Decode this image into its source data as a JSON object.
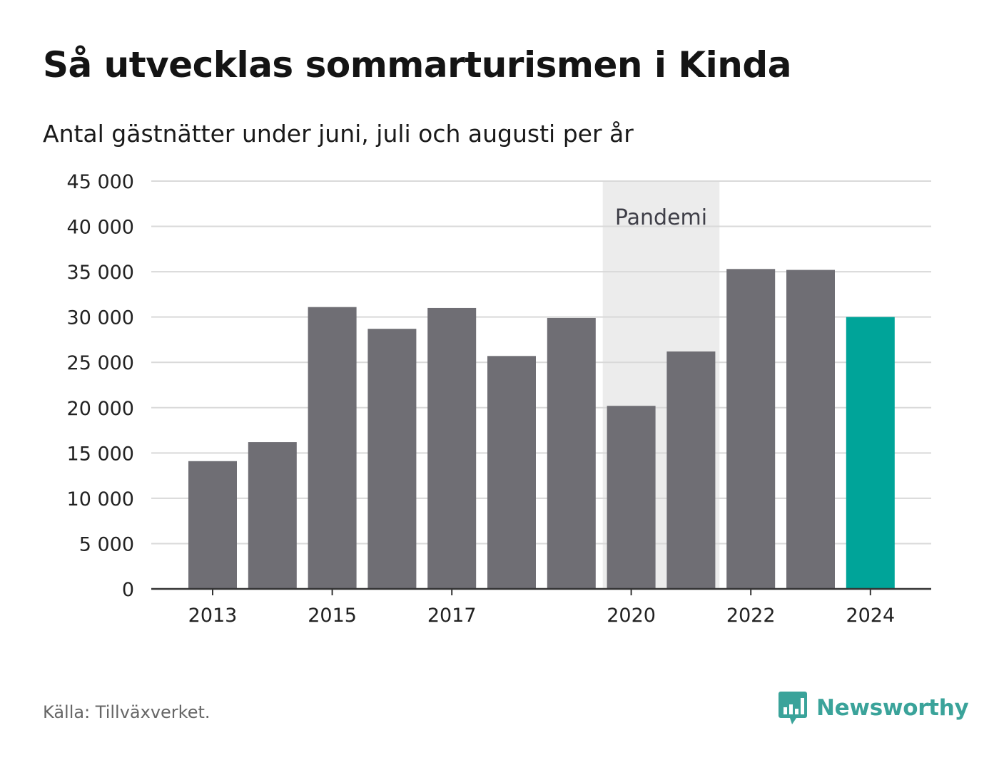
{
  "header": {
    "title": "Så utvecklas sommarturismen i Kinda",
    "subtitle": "Antal gästnätter under juni, juli och augusti per år"
  },
  "footer": {
    "source": "Källa: Tillväxverket.",
    "brand": "Newsworthy",
    "brand_icon": "bar-chart-speech-bubble-icon"
  },
  "colors": {
    "bar": "#6f6e74",
    "highlight": "#00a499",
    "band": "#ececec",
    "grid": "#d9d9d9",
    "axis": "#333333",
    "brand": "#3aa39a"
  },
  "chart_data": {
    "type": "bar",
    "categories": [
      "2013",
      "2014",
      "2015",
      "2016",
      "2017",
      "2018",
      "2019",
      "2020",
      "2021",
      "2022",
      "2023",
      "2024"
    ],
    "values": [
      14100,
      16200,
      31100,
      28700,
      31000,
      25700,
      29900,
      20200,
      26200,
      35300,
      35200,
      30000
    ],
    "highlight_index": 11,
    "x_tick_labels": [
      "2013",
      "2015",
      "2017",
      "2020",
      "2022",
      "2024"
    ],
    "y_ticks": [
      0,
      5000,
      10000,
      15000,
      20000,
      25000,
      30000,
      35000,
      40000,
      45000
    ],
    "y_tick_labels": [
      "0",
      "5 000",
      "10 000",
      "15 000",
      "20 000",
      "25 000",
      "30 000",
      "35 000",
      "40 000",
      "45 000"
    ],
    "ylim": [
      0,
      45000
    ],
    "grid": true,
    "annotation": {
      "label": "Pandemi",
      "from": "2020",
      "to": "2021"
    }
  }
}
